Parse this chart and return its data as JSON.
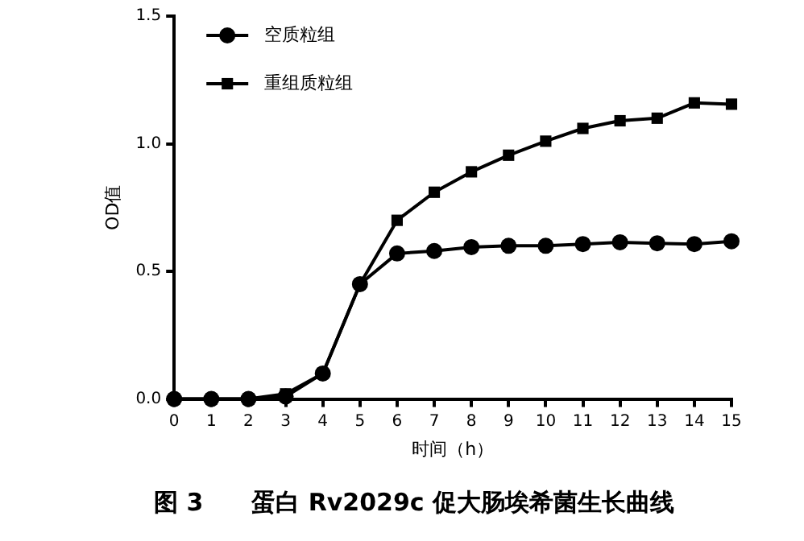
{
  "chart_data": {
    "type": "line",
    "title": "图 3　　蛋白 Rv2029c 促大肠埃希菌生长曲线",
    "xlabel": "时间（h）",
    "ylabel": "OD值",
    "x": [
      0,
      1,
      2,
      3,
      4,
      5,
      6,
      7,
      8,
      9,
      10,
      11,
      12,
      13,
      14,
      15
    ],
    "xlim": [
      0,
      15
    ],
    "xticks": [
      0,
      1,
      2,
      3,
      4,
      5,
      6,
      7,
      8,
      9,
      10,
      11,
      12,
      13,
      14,
      15
    ],
    "ylim": [
      0,
      1.5
    ],
    "yticks": [
      {
        "value": 0,
        "label": "0.0"
      },
      0.5,
      {
        "value": 1,
        "label": "1.0"
      },
      1.5
    ],
    "series": [
      {
        "name": "空质粒组",
        "color": "#000000",
        "marker": "circle",
        "values": [
          0,
          0,
          0,
          0.01,
          0.1,
          0.45,
          0.57,
          0.58,
          0.595,
          0.6,
          0.6,
          0.607,
          0.614,
          0.61,
          0.607,
          0.618
        ]
      },
      {
        "name": "重组质粒组",
        "color": "#000000",
        "marker": "square",
        "values": [
          0,
          0,
          0,
          0.02,
          0.1,
          0.45,
          0.7,
          0.81,
          0.89,
          0.955,
          1.01,
          1.06,
          1.09,
          1.1,
          1.16,
          1.155
        ]
      }
    ],
    "grid": false,
    "legend": "top left",
    "line_style": "solid"
  }
}
